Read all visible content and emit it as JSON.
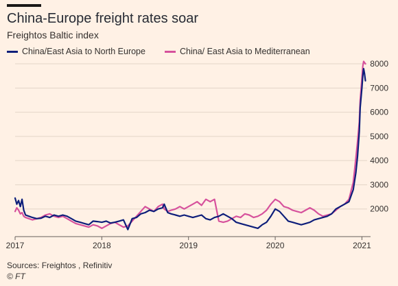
{
  "header": {
    "title": "China-Europe freight rates soar",
    "subtitle": "Freightos Baltic index"
  },
  "footer": {
    "source": "Sources: Freightos , Refinitiv",
    "credit": "© FT"
  },
  "colors": {
    "background": "#fff1e5",
    "series_north_europe": "#0d1e7a",
    "series_mediterranean": "#d6519c",
    "grid": "#e3d5c8",
    "text": "#33302e"
  },
  "chart_data": {
    "type": "line",
    "title": "China-Europe freight rates soar",
    "subtitle": "Freightos Baltic index",
    "xlabel": "",
    "ylabel": "",
    "xlim": [
      2017.0,
      2021.06
    ],
    "ylim": [
      1000,
      8200
    ],
    "y_ticks": [
      2000,
      3000,
      4000,
      5000,
      6000,
      7000,
      8000
    ],
    "y_tick_labels": [
      "2000",
      "3000",
      "4000",
      "5000",
      "6000",
      "7000",
      "8000"
    ],
    "x_ticks": [
      2017,
      2018,
      2019,
      2020,
      2021
    ],
    "x_tick_labels": [
      "2017",
      "2018",
      "2019",
      "2020",
      "2021"
    ],
    "grid": "horizontal",
    "legend_position": "top-left",
    "series": [
      {
        "name": "China/East Asia to North Europe",
        "color": "#0d1e7a",
        "x": [
          2017.0,
          2017.02,
          2017.04,
          2017.06,
          2017.08,
          2017.1,
          2017.12,
          2017.16,
          2017.2,
          2017.25,
          2017.3,
          2017.35,
          2017.4,
          2017.45,
          2017.5,
          2017.55,
          2017.6,
          2017.65,
          2017.7,
          2017.75,
          2017.8,
          2017.85,
          2017.9,
          2017.95,
          2018.0,
          2018.05,
          2018.1,
          2018.15,
          2018.2,
          2018.25,
          2018.3,
          2018.35,
          2018.4,
          2018.45,
          2018.5,
          2018.55,
          2018.6,
          2018.65,
          2018.7,
          2018.72,
          2018.76,
          2018.8,
          2018.85,
          2018.9,
          2018.95,
          2019.0,
          2019.05,
          2019.1,
          2019.15,
          2019.2,
          2019.25,
          2019.3,
          2019.35,
          2019.4,
          2019.45,
          2019.5,
          2019.55,
          2019.6,
          2019.65,
          2019.7,
          2019.75,
          2019.8,
          2019.85,
          2019.9,
          2019.95,
          2020.0,
          2020.05,
          2020.1,
          2020.15,
          2020.2,
          2020.25,
          2020.3,
          2020.35,
          2020.4,
          2020.45,
          2020.5,
          2020.55,
          2020.6,
          2020.65,
          2020.7,
          2020.75,
          2020.8,
          2020.85,
          2020.9,
          2020.93,
          2020.95,
          2020.97,
          2020.98,
          2021.0,
          2021.01,
          2021.02,
          2021.03,
          2021.04
        ],
        "values": [
          2450,
          2200,
          2350,
          2100,
          2400,
          1950,
          1750,
          1700,
          1650,
          1600,
          1620,
          1700,
          1650,
          1750,
          1700,
          1750,
          1700,
          1600,
          1500,
          1450,
          1400,
          1350,
          1500,
          1480,
          1450,
          1500,
          1420,
          1450,
          1500,
          1550,
          1150,
          1600,
          1650,
          1800,
          1850,
          1950,
          1900,
          2000,
          2050,
          2200,
          1850,
          1800,
          1750,
          1700,
          1750,
          1700,
          1650,
          1700,
          1750,
          1600,
          1550,
          1650,
          1700,
          1800,
          1700,
          1600,
          1450,
          1400,
          1350,
          1300,
          1250,
          1200,
          1350,
          1450,
          1700,
          2000,
          1900,
          1700,
          1500,
          1450,
          1400,
          1350,
          1400,
          1450,
          1550,
          1600,
          1650,
          1700,
          1800,
          2000,
          2100,
          2200,
          2300,
          2800,
          3500,
          4200,
          5200,
          6200,
          7000,
          7500,
          7800,
          7600,
          7300
        ]
      },
      {
        "name": "China/ East Asia to Mediterranean",
        "color": "#d6519c",
        "x": [
          2017.0,
          2017.02,
          2017.04,
          2017.06,
          2017.08,
          2017.1,
          2017.12,
          2017.16,
          2017.2,
          2017.25,
          2017.3,
          2017.35,
          2017.4,
          2017.45,
          2017.5,
          2017.55,
          2017.6,
          2017.65,
          2017.7,
          2017.75,
          2017.8,
          2017.85,
          2017.9,
          2017.95,
          2018.0,
          2018.05,
          2018.1,
          2018.15,
          2018.2,
          2018.25,
          2018.3,
          2018.35,
          2018.4,
          2018.45,
          2018.5,
          2018.55,
          2018.6,
          2018.65,
          2018.7,
          2018.72,
          2018.76,
          2018.8,
          2018.85,
          2018.9,
          2018.95,
          2019.0,
          2019.05,
          2019.1,
          2019.15,
          2019.2,
          2019.25,
          2019.3,
          2019.35,
          2019.4,
          2019.45,
          2019.5,
          2019.55,
          2019.6,
          2019.65,
          2019.7,
          2019.75,
          2019.8,
          2019.85,
          2019.9,
          2019.95,
          2020.0,
          2020.05,
          2020.1,
          2020.15,
          2020.2,
          2020.25,
          2020.3,
          2020.35,
          2020.4,
          2020.45,
          2020.5,
          2020.55,
          2020.6,
          2020.65,
          2020.7,
          2020.75,
          2020.8,
          2020.85,
          2020.9,
          2020.93,
          2020.95,
          2020.97,
          2020.98,
          2021.0,
          2021.01,
          2021.02,
          2021.03,
          2021.04
        ],
        "values": [
          1900,
          2050,
          1950,
          1800,
          1850,
          1700,
          1650,
          1600,
          1550,
          1600,
          1650,
          1750,
          1800,
          1700,
          1650,
          1700,
          1600,
          1500,
          1400,
          1350,
          1300,
          1250,
          1350,
          1300,
          1200,
          1300,
          1400,
          1450,
          1350,
          1250,
          1300,
          1500,
          1700,
          1900,
          2100,
          2000,
          1900,
          2100,
          2200,
          2000,
          1900,
          1950,
          2000,
          2100,
          2000,
          2100,
          2200,
          2300,
          2150,
          2400,
          2300,
          2400,
          1500,
          1450,
          1500,
          1600,
          1700,
          1650,
          1800,
          1750,
          1650,
          1700,
          1800,
          1950,
          2200,
          2400,
          2300,
          2100,
          2050,
          1950,
          1900,
          1850,
          1950,
          2050,
          1950,
          1800,
          1700,
          1750,
          1800,
          1950,
          2100,
          2200,
          2400,
          3100,
          4100,
          4800,
          5600,
          6500,
          7400,
          7900,
          8100,
          8050,
          8000
        ]
      }
    ]
  }
}
